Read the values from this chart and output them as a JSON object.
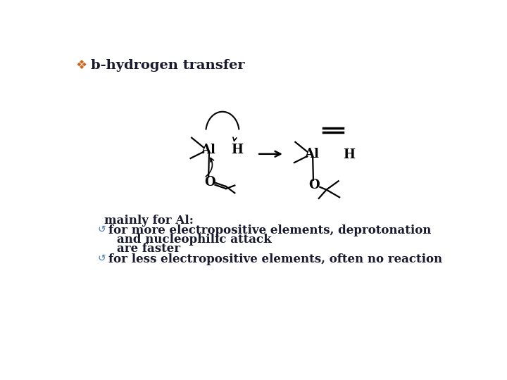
{
  "title": "b-hydrogen transfer",
  "title_bullet_color": "#C86820",
  "title_color": "#1a1a2e",
  "title_fontsize": 14,
  "body_text_color": "#1a1a2e",
  "bullet_color": "#4a7fb5",
  "body_fontsize": 12,
  "background_color": "#ffffff",
  "mainly_text": "mainly for Al:",
  "bullet1_line1": "for more electropositive elements, deprotonation",
  "bullet1_line2": "and nucleophilic attack",
  "bullet1_line3": "are faster",
  "bullet2_line1": "for less electropositive elements, often no reaction"
}
